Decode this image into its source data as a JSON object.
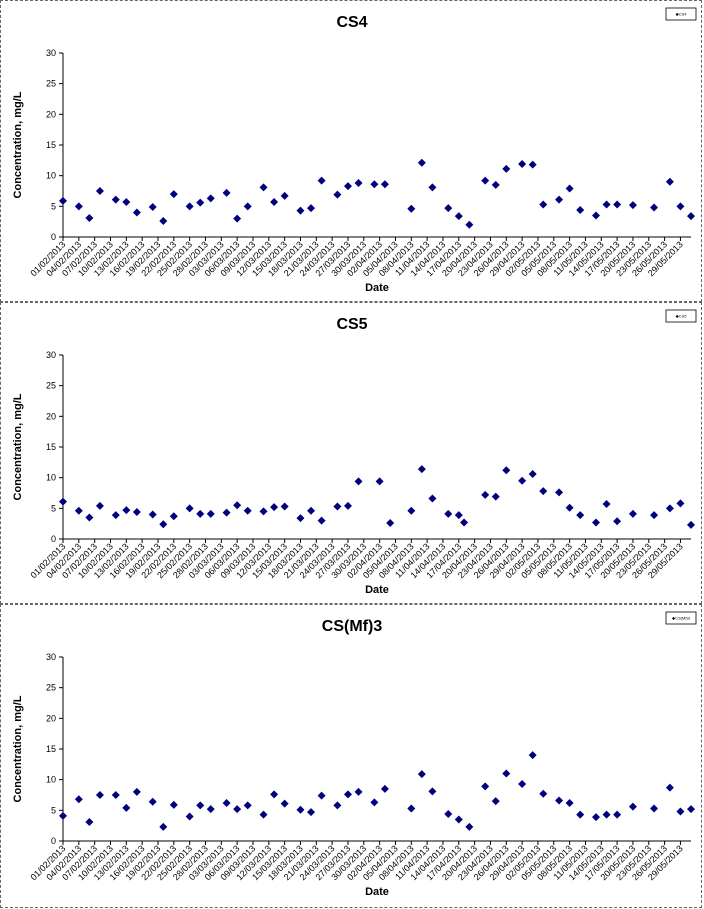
{
  "chart_data": [
    {
      "type": "scatter",
      "title": "CS4",
      "xlabel": "Date",
      "ylabel": "Concentration, mg/L",
      "ylim": [
        0,
        30
      ],
      "yticks": [
        0,
        5,
        10,
        15,
        20,
        25,
        30
      ],
      "grid": false,
      "legend": "top-right",
      "legend_label": "◆CS4",
      "marker_color": "#00007f",
      "xrange": [
        "2013-02-01",
        "2013-05-31"
      ],
      "x_tick_labels": [
        "01/02/2013",
        "04/02/2013",
        "07/02/2013",
        "10/02/2013",
        "13/02/2013",
        "16/02/2013",
        "19/02/2013",
        "22/02/2013",
        "25/02/2013",
        "28/02/2013",
        "03/03/2013",
        "06/03/2013",
        "09/03/2013",
        "12/03/2013",
        "15/03/2013",
        "18/03/2013",
        "21/03/2013",
        "24/03/2013",
        "27/03/2013",
        "30/03/2013",
        "02/04/2013",
        "05/04/2013",
        "08/04/2013",
        "11/04/2013",
        "14/04/2013",
        "17/04/2013",
        "20/04/2013",
        "23/04/2013",
        "26/04/2013",
        "29/04/2013",
        "02/05/2013",
        "05/05/2013",
        "08/05/2013",
        "11/05/2013",
        "14/05/2013",
        "17/05/2013",
        "20/05/2013",
        "23/05/2013",
        "26/05/2013",
        "29/05/2013"
      ],
      "points": [
        [
          "2013-02-01",
          5.9
        ],
        [
          "2013-02-04",
          5.0
        ],
        [
          "2013-02-06",
          3.1
        ],
        [
          "2013-02-08",
          7.5
        ],
        [
          "2013-02-11",
          6.1
        ],
        [
          "2013-02-13",
          5.7
        ],
        [
          "2013-02-15",
          4.0
        ],
        [
          "2013-02-18",
          4.9
        ],
        [
          "2013-02-20",
          2.6
        ],
        [
          "2013-02-22",
          7.0
        ],
        [
          "2013-02-25",
          5.0
        ],
        [
          "2013-02-27",
          5.6
        ],
        [
          "2013-03-01",
          6.3
        ],
        [
          "2013-03-04",
          7.2
        ],
        [
          "2013-03-06",
          3.0
        ],
        [
          "2013-03-08",
          5.0
        ],
        [
          "2013-03-11",
          8.1
        ],
        [
          "2013-03-13",
          5.7
        ],
        [
          "2013-03-15",
          6.7
        ],
        [
          "2013-03-18",
          4.3
        ],
        [
          "2013-03-20",
          4.7
        ],
        [
          "2013-03-22",
          9.2
        ],
        [
          "2013-03-25",
          6.9
        ],
        [
          "2013-03-27",
          8.3
        ],
        [
          "2013-03-29",
          8.8
        ],
        [
          "2013-04-01",
          8.6
        ],
        [
          "2013-04-03",
          8.6
        ],
        [
          "2013-04-08",
          4.6
        ],
        [
          "2013-04-10",
          12.1
        ],
        [
          "2013-04-12",
          8.1
        ],
        [
          "2013-04-15",
          4.7
        ],
        [
          "2013-04-17",
          3.4
        ],
        [
          "2013-04-19",
          2.0
        ],
        [
          "2013-04-22",
          9.2
        ],
        [
          "2013-04-24",
          8.5
        ],
        [
          "2013-04-26",
          11.1
        ],
        [
          "2013-04-29",
          11.9
        ],
        [
          "2013-05-01",
          11.8
        ],
        [
          "2013-05-03",
          5.3
        ],
        [
          "2013-05-06",
          6.1
        ],
        [
          "2013-05-08",
          7.9
        ],
        [
          "2013-05-10",
          4.4
        ],
        [
          "2013-05-13",
          3.5
        ],
        [
          "2013-05-15",
          5.3
        ],
        [
          "2013-05-17",
          5.3
        ],
        [
          "2013-05-20",
          5.2
        ],
        [
          "2013-05-24",
          4.8
        ],
        [
          "2013-05-27",
          9.0
        ],
        [
          "2013-05-29",
          5.0
        ],
        [
          "2013-05-31",
          3.4
        ]
      ]
    },
    {
      "type": "scatter",
      "title": "CS5",
      "xlabel": "Date",
      "ylabel": "Concentration, mg/L",
      "ylim": [
        0,
        30
      ],
      "yticks": [
        0,
        5,
        10,
        15,
        20,
        25,
        30
      ],
      "grid": false,
      "legend": "top-right",
      "legend_label": "◆CS5",
      "marker_color": "#00007f",
      "xrange": [
        "2013-02-01",
        "2013-05-31"
      ],
      "x_tick_labels": [
        "01/02/2013",
        "04/02/2013",
        "07/02/2013",
        "10/02/2013",
        "13/02/2013",
        "16/02/2013",
        "19/02/2013",
        "22/02/2013",
        "25/02/2013",
        "28/02/2013",
        "03/03/2013",
        "06/03/2013",
        "09/03/2013",
        "12/03/2013",
        "15/03/2013",
        "18/03/2013",
        "21/03/2013",
        "24/03/2013",
        "27/03/2013",
        "30/03/2013",
        "02/04/2013",
        "05/04/2013",
        "08/04/2013",
        "11/04/2013",
        "14/04/2013",
        "17/04/2013",
        "20/04/2013",
        "23/04/2013",
        "26/04/2013",
        "29/04/2013",
        "02/05/2013",
        "05/05/2013",
        "08/05/2013",
        "11/05/2013",
        "14/05/2013",
        "17/05/2013",
        "20/05/2013",
        "23/05/2013",
        "26/05/2013",
        "29/05/2013"
      ],
      "points": [
        [
          "2013-02-01",
          6.1
        ],
        [
          "2013-02-04",
          4.6
        ],
        [
          "2013-02-06",
          3.5
        ],
        [
          "2013-02-08",
          5.4
        ],
        [
          "2013-02-11",
          3.9
        ],
        [
          "2013-02-13",
          4.7
        ],
        [
          "2013-02-15",
          4.4
        ],
        [
          "2013-02-18",
          4.0
        ],
        [
          "2013-02-20",
          2.4
        ],
        [
          "2013-02-22",
          3.7
        ],
        [
          "2013-02-25",
          5.0
        ],
        [
          "2013-02-27",
          4.1
        ],
        [
          "2013-03-01",
          4.1
        ],
        [
          "2013-03-04",
          4.3
        ],
        [
          "2013-03-06",
          5.5
        ],
        [
          "2013-03-08",
          4.6
        ],
        [
          "2013-03-11",
          4.5
        ],
        [
          "2013-03-13",
          5.2
        ],
        [
          "2013-03-15",
          5.3
        ],
        [
          "2013-03-18",
          3.4
        ],
        [
          "2013-03-20",
          4.6
        ],
        [
          "2013-03-22",
          3.0
        ],
        [
          "2013-03-25",
          5.3
        ],
        [
          "2013-03-27",
          5.4
        ],
        [
          "2013-03-29",
          9.4
        ],
        [
          "2013-04-02",
          9.4
        ],
        [
          "2013-04-04",
          2.6
        ],
        [
          "2013-04-08",
          4.6
        ],
        [
          "2013-04-10",
          11.4
        ],
        [
          "2013-04-12",
          6.6
        ],
        [
          "2013-04-15",
          4.1
        ],
        [
          "2013-04-17",
          3.9
        ],
        [
          "2013-04-18",
          2.7
        ],
        [
          "2013-04-22",
          7.2
        ],
        [
          "2013-04-24",
          6.9
        ],
        [
          "2013-04-26",
          11.2
        ],
        [
          "2013-04-29",
          9.5
        ],
        [
          "2013-05-01",
          10.6
        ],
        [
          "2013-05-03",
          7.8
        ],
        [
          "2013-05-06",
          7.6
        ],
        [
          "2013-05-08",
          5.1
        ],
        [
          "2013-05-10",
          3.9
        ],
        [
          "2013-05-13",
          2.7
        ],
        [
          "2013-05-15",
          5.7
        ],
        [
          "2013-05-17",
          2.9
        ],
        [
          "2013-05-20",
          4.1
        ],
        [
          "2013-05-24",
          3.9
        ],
        [
          "2013-05-27",
          5.0
        ],
        [
          "2013-05-29",
          5.8
        ],
        [
          "2013-05-31",
          2.3
        ]
      ]
    },
    {
      "type": "scatter",
      "title": "CS(Mf)3",
      "xlabel": "Date",
      "ylabel": "Concentration, mg/L",
      "ylim": [
        0,
        30
      ],
      "yticks": [
        0,
        5,
        10,
        15,
        20,
        25,
        30
      ],
      "grid": false,
      "legend": "top-right",
      "legend_label": "◆CS(Mf)3",
      "marker_color": "#00007f",
      "xrange": [
        "2013-02-01",
        "2013-05-31"
      ],
      "x_tick_labels": [
        "01/02/2013",
        "04/02/2013",
        "07/02/2013",
        "10/02/2013",
        "13/02/2013",
        "16/02/2013",
        "19/02/2013",
        "22/02/2013",
        "25/02/2013",
        "28/02/2013",
        "03/03/2013",
        "06/03/2013",
        "09/03/2013",
        "12/03/2013",
        "15/03/2013",
        "18/03/2013",
        "21/03/2013",
        "24/03/2013",
        "27/03/2013",
        "30/03/2013",
        "02/04/2013",
        "05/04/2013",
        "08/04/2013",
        "11/04/2013",
        "14/04/2013",
        "17/04/2013",
        "20/04/2013",
        "23/04/2013",
        "26/04/2013",
        "29/04/2013",
        "02/05/2013",
        "05/05/2013",
        "08/05/2013",
        "11/05/2013",
        "14/05/2013",
        "17/05/2013",
        "20/05/2013",
        "23/05/2013",
        "26/05/2013",
        "29/05/2013"
      ],
      "points": [
        [
          "2013-02-01",
          4.1
        ],
        [
          "2013-02-04",
          6.8
        ],
        [
          "2013-02-06",
          3.1
        ],
        [
          "2013-02-08",
          7.5
        ],
        [
          "2013-02-11",
          7.5
        ],
        [
          "2013-02-13",
          5.4
        ],
        [
          "2013-02-15",
          8.0
        ],
        [
          "2013-02-18",
          6.4
        ],
        [
          "2013-02-20",
          2.3
        ],
        [
          "2013-02-22",
          5.9
        ],
        [
          "2013-02-25",
          4.0
        ],
        [
          "2013-02-27",
          5.8
        ],
        [
          "2013-03-01",
          5.2
        ],
        [
          "2013-03-04",
          6.2
        ],
        [
          "2013-03-06",
          5.2
        ],
        [
          "2013-03-08",
          5.8
        ],
        [
          "2013-03-11",
          4.3
        ],
        [
          "2013-03-13",
          7.6
        ],
        [
          "2013-03-15",
          6.1
        ],
        [
          "2013-03-18",
          5.1
        ],
        [
          "2013-03-20",
          4.7
        ],
        [
          "2013-03-22",
          7.4
        ],
        [
          "2013-03-25",
          5.8
        ],
        [
          "2013-03-27",
          7.6
        ],
        [
          "2013-03-29",
          8.0
        ],
        [
          "2013-04-01",
          6.3
        ],
        [
          "2013-04-03",
          8.5
        ],
        [
          "2013-04-08",
          5.3
        ],
        [
          "2013-04-10",
          10.9
        ],
        [
          "2013-04-12",
          8.1
        ],
        [
          "2013-04-15",
          4.4
        ],
        [
          "2013-04-17",
          3.5
        ],
        [
          "2013-04-19",
          2.3
        ],
        [
          "2013-04-22",
          8.9
        ],
        [
          "2013-04-24",
          6.5
        ],
        [
          "2013-04-26",
          11.0
        ],
        [
          "2013-04-29",
          9.3
        ],
        [
          "2013-05-01",
          14.0
        ],
        [
          "2013-05-03",
          7.7
        ],
        [
          "2013-05-06",
          6.6
        ],
        [
          "2013-05-08",
          6.2
        ],
        [
          "2013-05-10",
          4.3
        ],
        [
          "2013-05-13",
          3.9
        ],
        [
          "2013-05-15",
          4.3
        ],
        [
          "2013-05-17",
          4.3
        ],
        [
          "2013-05-20",
          5.6
        ],
        [
          "2013-05-24",
          5.3
        ],
        [
          "2013-05-27",
          8.7
        ],
        [
          "2013-05-29",
          4.8
        ],
        [
          "2013-05-31",
          5.2
        ]
      ]
    }
  ]
}
